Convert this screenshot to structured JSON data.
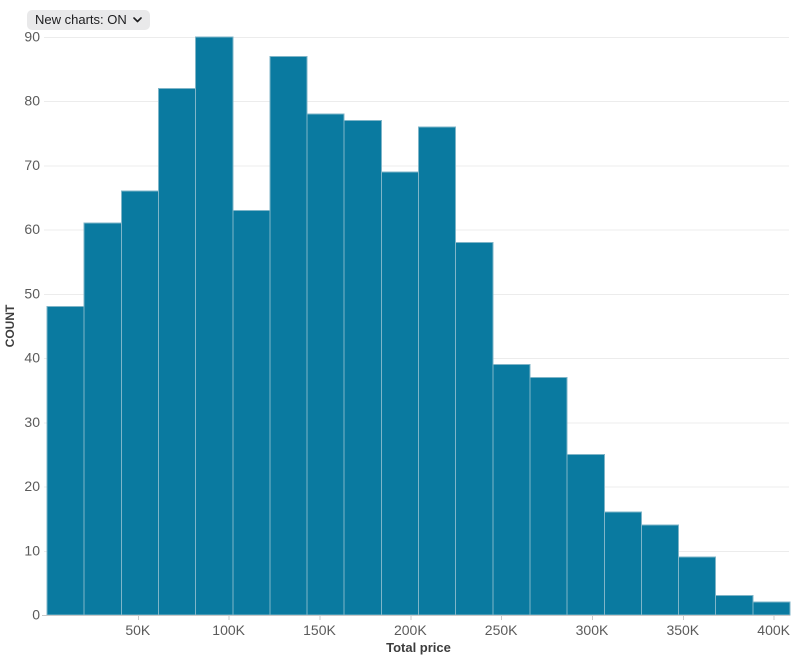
{
  "controls": {
    "new_charts_label": "New charts: ON"
  },
  "chart_data": {
    "type": "bar",
    "subtype": "histogram",
    "title": "",
    "xlabel": "Total price",
    "ylabel": "COUNT",
    "n_bins": 20,
    "x_domain": [
      0,
      409000
    ],
    "bin_width": 20450,
    "values": [
      48,
      61,
      66,
      82,
      90,
      63,
      87,
      78,
      77,
      69,
      76,
      58,
      39,
      37,
      25,
      16,
      14,
      9,
      3,
      2
    ],
    "x_ticks": [
      {
        "value": 50000,
        "label": "50K"
      },
      {
        "value": 100000,
        "label": "100K"
      },
      {
        "value": 150000,
        "label": "150K"
      },
      {
        "value": 200000,
        "label": "200K"
      },
      {
        "value": 250000,
        "label": "250K"
      },
      {
        "value": 300000,
        "label": "300K"
      },
      {
        "value": 350000,
        "label": "350K"
      },
      {
        "value": 400000,
        "label": "400K"
      }
    ],
    "y_ticks": [
      0,
      10,
      20,
      30,
      40,
      50,
      60,
      70,
      80,
      90
    ],
    "ylim": [
      0,
      90
    ],
    "grid": true,
    "legend": "none",
    "colors": {
      "bar_fill": "#0a7aa0",
      "bar_stroke": "#7fb5c8",
      "grid_line": "#ececec",
      "axis_line": "#c9c9c9",
      "tick_label": "#5b5b5b",
      "axis_title": "#3d3d3d"
    }
  }
}
